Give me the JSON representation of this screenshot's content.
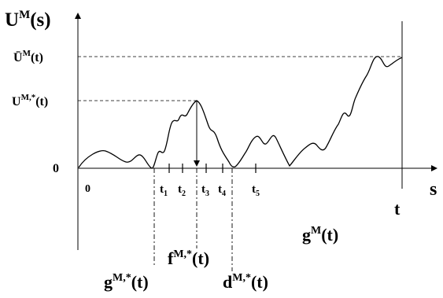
{
  "y_axis": {
    "title_main": "U",
    "title_sup": "M",
    "title_arg": "(s)",
    "tick_upper_main": "Ū",
    "tick_upper_sup": "M",
    "tick_upper_arg": "(t)",
    "tick_mid_main": "U",
    "tick_mid_sup": "M,*",
    "tick_mid_arg": "(t)",
    "tick_zero": "0"
  },
  "x_axis": {
    "origin_label": "0",
    "end_label": "s",
    "t_label": "t"
  },
  "ticks": [
    {
      "main": "t",
      "sub": "1"
    },
    {
      "main": "t",
      "sub": "2"
    },
    {
      "main": "t",
      "sub": "3"
    },
    {
      "main": "t",
      "sub": "4"
    },
    {
      "main": "t",
      "sub": "5"
    }
  ],
  "labels": {
    "g_star_main": "g",
    "g_star_sup": "M,*",
    "g_star_arg": "(t)",
    "f_star_main": "f",
    "f_star_sup": "M,*",
    "f_star_arg": "(t)",
    "d_star_main": "d",
    "d_star_sup": "M,*",
    "d_star_arg": "(t)",
    "g_main": "g",
    "g_sup": "M",
    "g_arg": "(t)"
  }
}
